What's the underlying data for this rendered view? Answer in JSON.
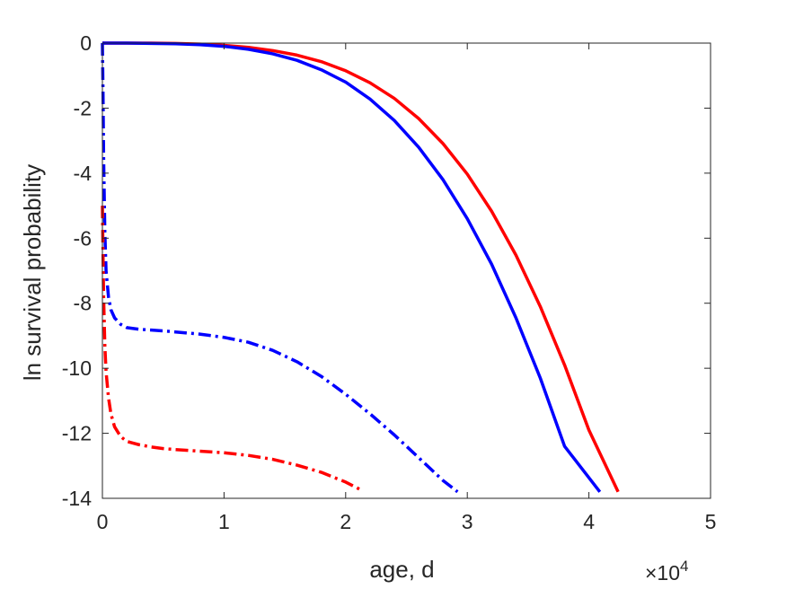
{
  "chart_data": {
    "type": "line",
    "title": "",
    "xlabel": "age, d",
    "ylabel": "ln survival probability",
    "x_exponent_label": "×10",
    "x_exponent_power": "4",
    "xlim": [
      0,
      50000
    ],
    "ylim": [
      -14,
      0
    ],
    "xticks": [
      0,
      10000,
      20000,
      30000,
      40000,
      50000
    ],
    "xtick_labels": [
      "0",
      "1",
      "2",
      "3",
      "4",
      "5"
    ],
    "yticks": [
      0,
      -2,
      -4,
      -6,
      -8,
      -10,
      -12,
      -14
    ],
    "ytick_labels": [
      "0",
      "-2",
      "-4",
      "-6",
      "-8",
      "-10",
      "-12",
      "-14"
    ],
    "grid": false,
    "legend": "none",
    "series": [
      {
        "color": "#ff0000",
        "style": "solid",
        "x": [
          0,
          2000,
          4000,
          6000,
          8000,
          10000,
          12000,
          14000,
          16000,
          18000,
          20000,
          22000,
          24000,
          26000,
          28000,
          30000,
          32000,
          34000,
          36000,
          38000,
          40000,
          42400
        ],
        "y": [
          0,
          0,
          0,
          -0.01,
          -0.03,
          -0.07,
          -0.13,
          -0.23,
          -0.37,
          -0.57,
          -0.85,
          -1.22,
          -1.7,
          -2.32,
          -3.09,
          -4.03,
          -5.17,
          -6.52,
          -8.1,
          -9.9,
          -11.9,
          -13.8
        ]
      },
      {
        "color": "#0000ff",
        "style": "solid",
        "x": [
          0,
          2000,
          4000,
          6000,
          8000,
          10000,
          12000,
          14000,
          16000,
          18000,
          20000,
          22000,
          24000,
          26000,
          28000,
          30000,
          32000,
          34000,
          36000,
          38000,
          40900
        ],
        "y": [
          0,
          0,
          -0.01,
          -0.02,
          -0.05,
          -0.1,
          -0.19,
          -0.33,
          -0.53,
          -0.82,
          -1.2,
          -1.72,
          -2.38,
          -3.2,
          -4.2,
          -5.4,
          -6.8,
          -8.45,
          -10.3,
          -12.4,
          -13.8
        ]
      },
      {
        "color": "#0000ff",
        "style": "dashdot",
        "x": [
          0,
          50,
          100,
          200,
          300,
          500,
          700,
          1000,
          1500,
          2000,
          3000,
          5000,
          8000,
          10000,
          12000,
          14000,
          16000,
          18000,
          20000,
          22000,
          24000,
          26000,
          28000,
          29200
        ],
        "y": [
          0,
          -1.5,
          -3.5,
          -5.8,
          -7.0,
          -7.8,
          -8.2,
          -8.45,
          -8.65,
          -8.75,
          -8.8,
          -8.85,
          -8.95,
          -9.05,
          -9.2,
          -9.45,
          -9.8,
          -10.25,
          -10.8,
          -11.4,
          -12.05,
          -12.75,
          -13.45,
          -13.8
        ]
      },
      {
        "color": "#ff0000",
        "style": "dashdot",
        "x": [
          0,
          50,
          100,
          200,
          300,
          500,
          700,
          1000,
          1500,
          2000,
          2500,
          3000,
          4000,
          5000,
          6000,
          8000,
          10000,
          12000,
          14000,
          16000,
          18000,
          20000,
          21300
        ],
        "y": [
          -5.0,
          -6.5,
          -7.8,
          -9.3,
          -10.1,
          -10.9,
          -11.4,
          -11.8,
          -12.1,
          -12.25,
          -12.3,
          -12.35,
          -12.42,
          -12.47,
          -12.5,
          -12.55,
          -12.6,
          -12.68,
          -12.8,
          -12.98,
          -13.2,
          -13.5,
          -13.75
        ]
      }
    ]
  }
}
